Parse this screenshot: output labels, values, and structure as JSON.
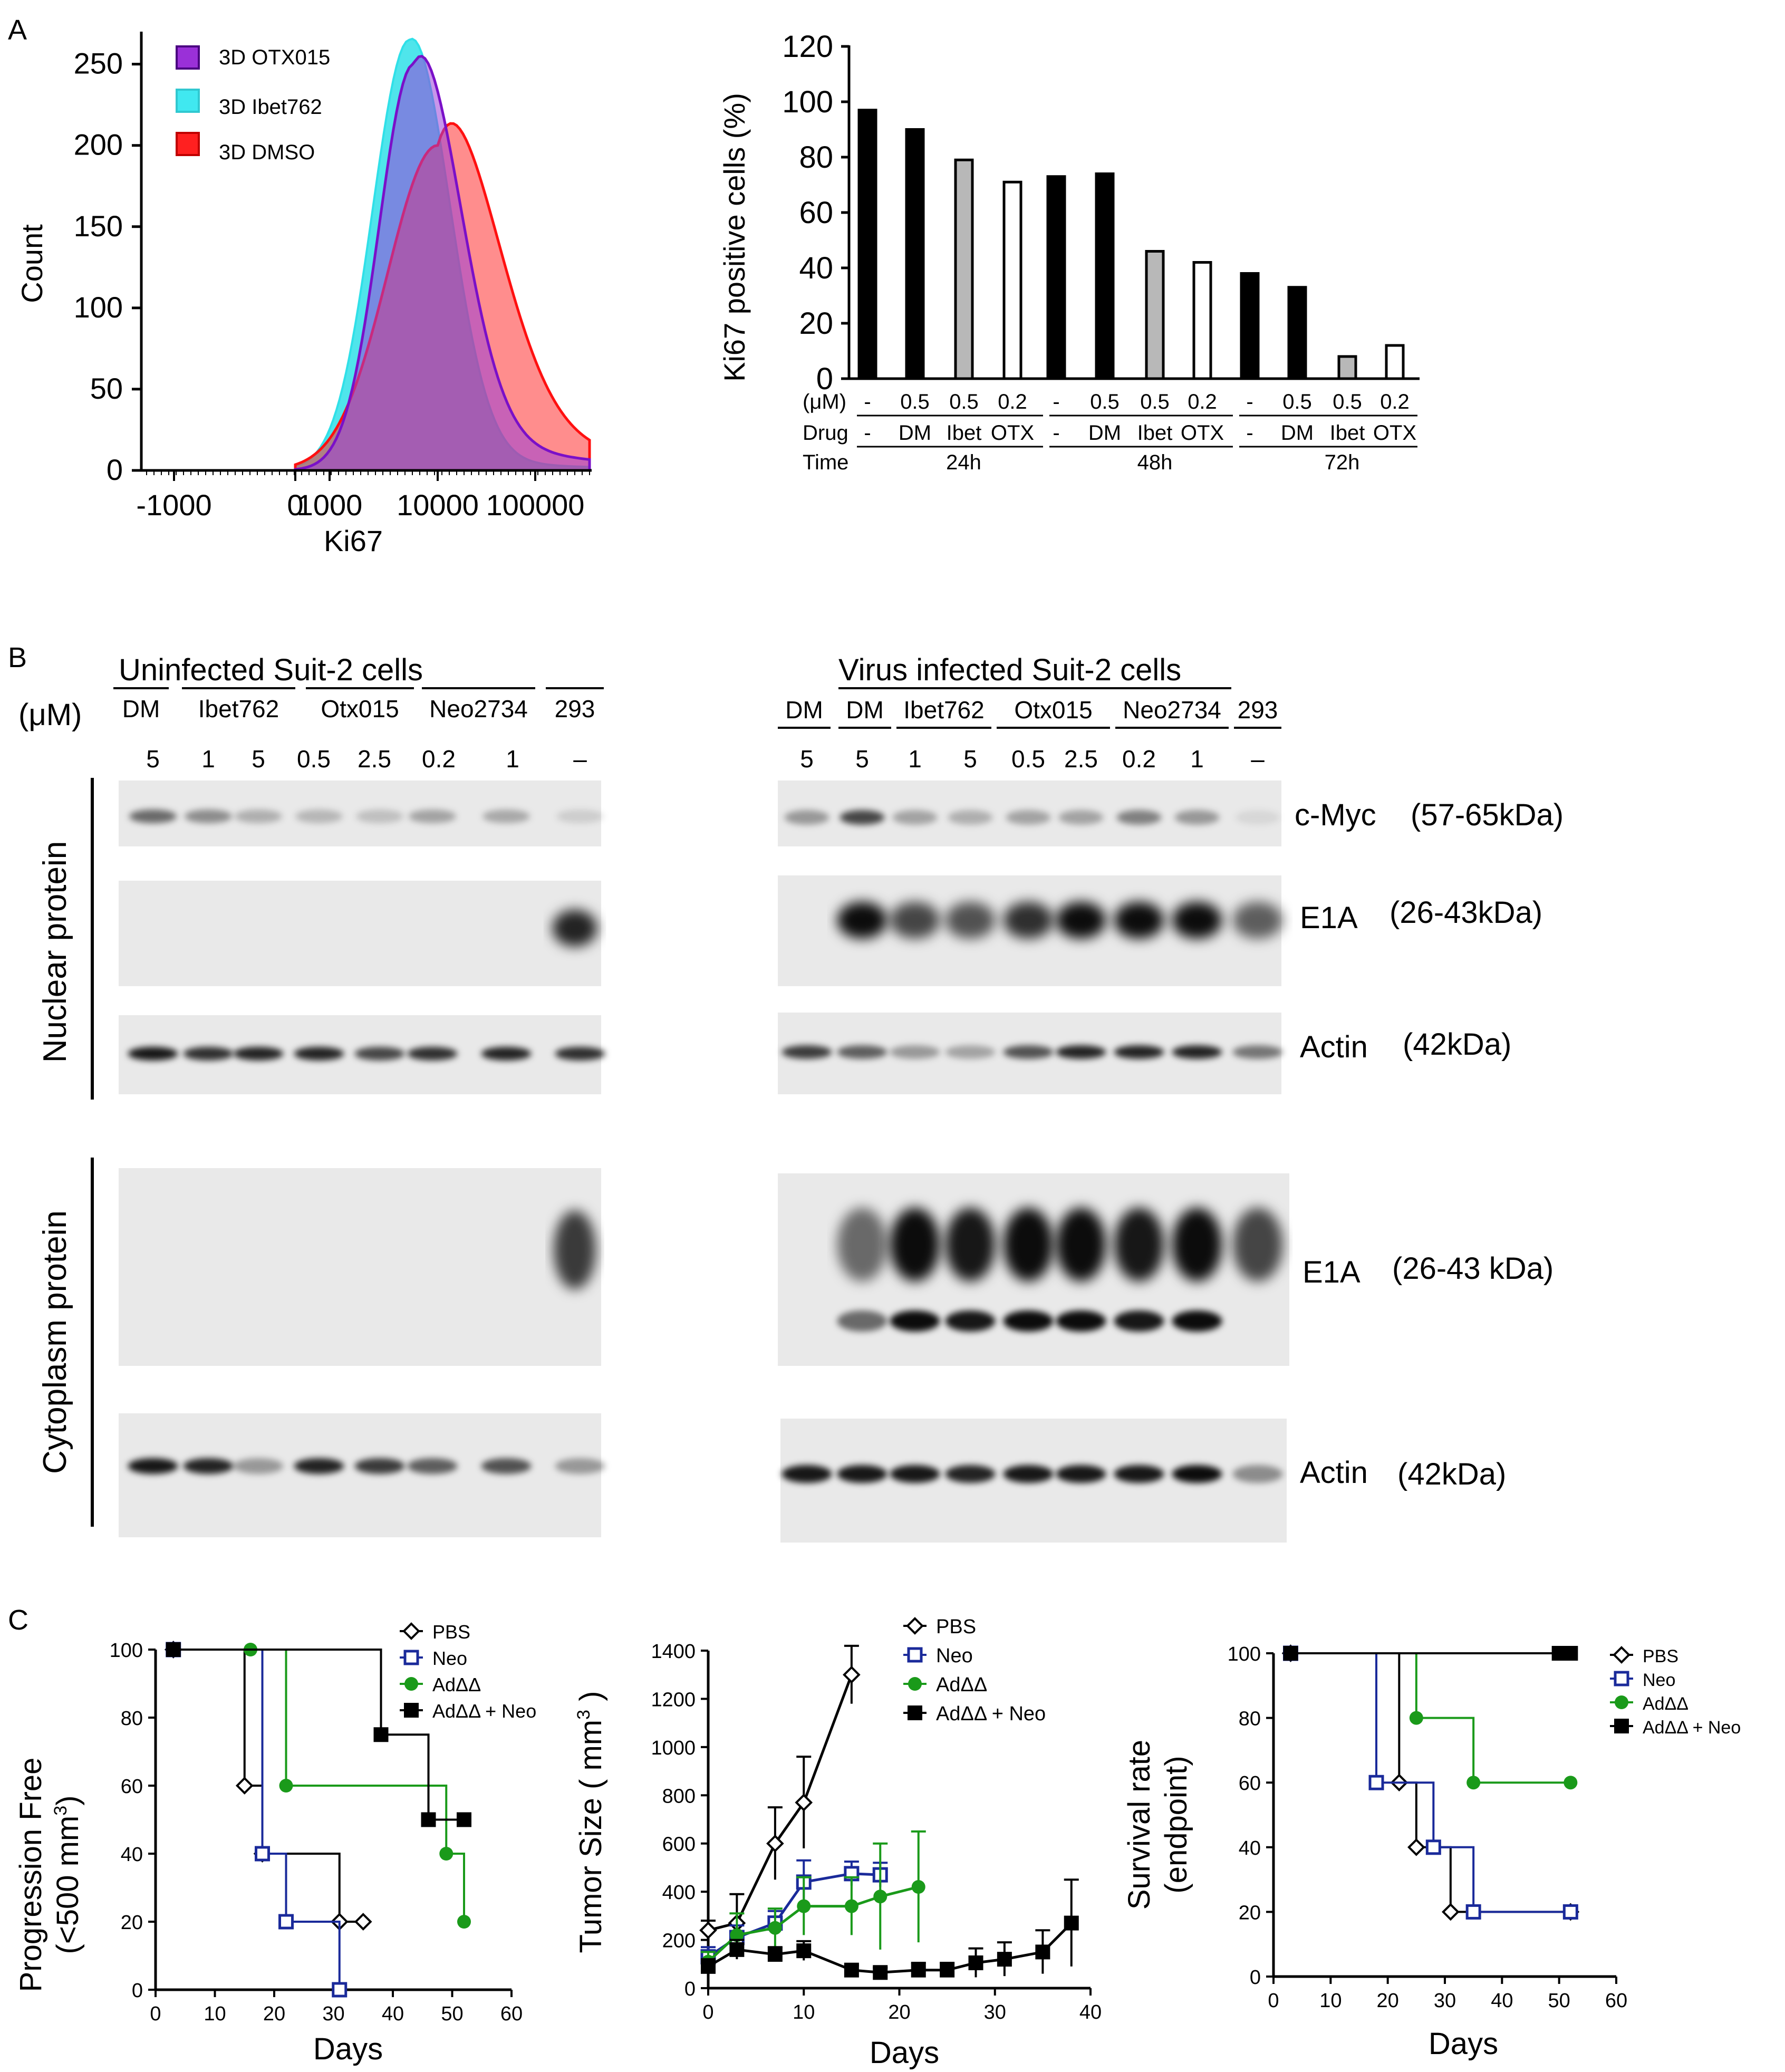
{
  "panels": [
    {
      "label": "A"
    },
    {
      "label": "B"
    },
    {
      "label": "C"
    }
  ],
  "colors": {
    "otx": "#9a30d8",
    "ibet": "#30e0e8",
    "dmso": "#ff2020",
    "black": "#000000",
    "grey": "#b8b8b8",
    "white": "#ffffff",
    "navy": "#1a2a9a",
    "green": "#1a9a1a"
  },
  "chart_data": [
    {
      "id": "A-histogram",
      "type": "area",
      "xlabel": "Ki67",
      "ylabel": "Count",
      "ylim": [
        0,
        270
      ],
      "yticks": [
        "0",
        "50",
        "100",
        "150",
        "200",
        "250"
      ],
      "xticks": [
        "-1000",
        "0",
        "1000",
        "10000",
        "100000"
      ],
      "series": [
        {
          "name": "3D OTX015",
          "peak_count": 250,
          "peak_ki67": 6000
        },
        {
          "name": "3D Ibet762",
          "peak_count": 265,
          "peak_ki67": 5500
        },
        {
          "name": "3D DMSO",
          "peak_count": 200,
          "peak_ki67": 10000
        }
      ]
    },
    {
      "id": "A-bar",
      "type": "bar",
      "ylabel": "Ki67 positive cells (%)",
      "ylim": [
        0,
        120
      ],
      "yticks": [
        "0",
        "20",
        "40",
        "60",
        "80",
        "100",
        "120"
      ],
      "row_labels": [
        "(μM)",
        "Drug",
        "Time"
      ],
      "dose_labels": [
        "-",
        "0.5",
        "0.5",
        "0.2",
        "-",
        "0.5",
        "0.5",
        "0.2",
        "-",
        "0.5",
        "0.5",
        "0.2"
      ],
      "drug_labels": [
        "-",
        "DM",
        "Ibet",
        "OTX",
        "-",
        "DM",
        "Ibet",
        "OTX",
        "-",
        "DM",
        "Ibet",
        "OTX"
      ],
      "time_labels": [
        "24h",
        "48h",
        "72h"
      ],
      "values": [
        97,
        90,
        79,
        71,
        73,
        74,
        46,
        42,
        38,
        33,
        8,
        12
      ],
      "fill": [
        "black",
        "black",
        "grey",
        "white",
        "black",
        "black",
        "grey",
        "white",
        "black",
        "black",
        "grey",
        "white"
      ]
    },
    {
      "id": "C-progression",
      "type": "line",
      "xlabel": "Days",
      "ylabel": "Progression Free (<500 mm³)",
      "ylabel_line1": "Progression Free",
      "ylabel_line2": "(<500 mm",
      "ylabel_sup": "3",
      "ylabel_close": ")",
      "xlim": [
        0,
        60
      ],
      "ylim": [
        0,
        100
      ],
      "xticks": [
        "0",
        "10",
        "20",
        "30",
        "40",
        "50",
        "60"
      ],
      "yticks": [
        "0",
        "20",
        "40",
        "60",
        "80",
        "100"
      ],
      "series": [
        {
          "name": "PBS",
          "points": [
            [
              3,
              100
            ],
            [
              15,
              60
            ],
            [
              18,
              40
            ],
            [
              31,
              20
            ],
            [
              35,
              20
            ]
          ]
        },
        {
          "name": "Neo",
          "points": [
            [
              3,
              100
            ],
            [
              18,
              40
            ],
            [
              22,
              20
            ],
            [
              31,
              0
            ]
          ]
        },
        {
          "name": "AdΔΔ",
          "points": [
            [
              3,
              100
            ],
            [
              16,
              100
            ],
            [
              22,
              60
            ],
            [
              49,
              40
            ],
            [
              52,
              20
            ]
          ]
        },
        {
          "name": "AdΔΔ + Neo",
          "points": [
            [
              3,
              100
            ],
            [
              38,
              75
            ],
            [
              46,
              50
            ],
            [
              52,
              50
            ]
          ]
        }
      ]
    },
    {
      "id": "C-tumor",
      "type": "line",
      "xlabel": "Days",
      "ylabel": "Tumor Size ( mm³ )",
      "ylabel_main": "Tumor Size ( mm",
      "ylabel_sup": "3",
      "ylabel_close": " )",
      "xlim": [
        0,
        40
      ],
      "ylim": [
        0,
        1450
      ],
      "xticks": [
        "0",
        "10",
        "20",
        "30",
        "40"
      ],
      "yticks": [
        "0",
        "200",
        "400",
        "600",
        "800",
        "1000",
        "1200",
        "1400"
      ],
      "series": [
        {
          "name": "PBS",
          "x": [
            0,
            3,
            7,
            10,
            15
          ],
          "y": [
            240,
            270,
            600,
            770,
            1300
          ],
          "err": [
            40,
            120,
            150,
            190,
            120
          ]
        },
        {
          "name": "Neo",
          "x": [
            0,
            3,
            7,
            10,
            15,
            18
          ],
          "y": [
            130,
            210,
            270,
            440,
            475,
            470
          ],
          "err": [
            40,
            50,
            50,
            90,
            50,
            50
          ]
        },
        {
          "name": "AdΔΔ",
          "x": [
            0,
            3,
            7,
            10,
            15,
            18,
            22
          ],
          "y": [
            110,
            220,
            250,
            340,
            340,
            380,
            420
          ],
          "err": [
            40,
            90,
            80,
            120,
            120,
            220,
            230
          ]
        },
        {
          "name": "AdΔΔ + Neo",
          "x": [
            0,
            3,
            7,
            10,
            15,
            18,
            22,
            25,
            28,
            31,
            35,
            38
          ],
          "y": [
            90,
            160,
            140,
            155,
            75,
            65,
            75,
            75,
            105,
            120,
            150,
            270
          ],
          "err": [
            30,
            40,
            30,
            40,
            20,
            20,
            30,
            30,
            60,
            70,
            90,
            180
          ]
        }
      ]
    },
    {
      "id": "C-survival",
      "type": "line",
      "xlabel": "Days",
      "ylabel": "Survival rate (endpoint)",
      "ylabel_line1": "Survival rate",
      "ylabel_line2": "(endpoint)",
      "xlim": [
        0,
        60
      ],
      "ylim": [
        0,
        100
      ],
      "xticks": [
        "0",
        "10",
        "20",
        "30",
        "40",
        "50",
        "60"
      ],
      "yticks": [
        "0",
        "20",
        "40",
        "60",
        "80",
        "100"
      ],
      "series": [
        {
          "name": "PBS",
          "points": [
            [
              3,
              100
            ],
            [
              22,
              60
            ],
            [
              25,
              40
            ],
            [
              31,
              20
            ],
            [
              52,
              20
            ]
          ]
        },
        {
          "name": "Neo",
          "points": [
            [
              3,
              100
            ],
            [
              18,
              60
            ],
            [
              28,
              40
            ],
            [
              35,
              20
            ],
            [
              52,
              20
            ]
          ]
        },
        {
          "name": "AdΔΔ",
          "points": [
            [
              3,
              100
            ],
            [
              25,
              80
            ],
            [
              35,
              60
            ],
            [
              52,
              60
            ]
          ]
        },
        {
          "name": "AdΔΔ + Neo",
          "points": [
            [
              3,
              100
            ],
            [
              50,
              100
            ],
            [
              52,
              100
            ]
          ]
        }
      ]
    }
  ],
  "blots": {
    "left_title": "Uninfected Suit-2 cells",
    "right_title": "Virus infected Suit-2 cells",
    "unit_label": "(μM)",
    "left_groups": [
      "DM",
      "Ibet762",
      "Otx015",
      "Neo2734",
      "293"
    ],
    "left_doses": [
      "5",
      "1",
      "5",
      "0.5",
      "2.5",
      "0.2",
      "1",
      "–"
    ],
    "right_groups": [
      "DM",
      "DM",
      "Ibet762",
      "Otx015",
      "Neo2734",
      "293"
    ],
    "right_doses": [
      "5",
      "5",
      "1",
      "5",
      "0.5",
      "2.5",
      "0.2",
      "1",
      "–"
    ],
    "section_nuclear": "Nuclear protein",
    "section_cytoplasm": "Cytoplasm protein",
    "band_labels": [
      {
        "name": "c-Myc",
        "size": "(57-65kDa)"
      },
      {
        "name": "E1A",
        "size": "(26-43kDa)"
      },
      {
        "name": "Actin",
        "size": "(42kDa)"
      },
      {
        "name": "E1A",
        "size": "(26-43 kDa)"
      },
      {
        "name": "Actin",
        "size": "(42kDa)"
      }
    ]
  }
}
